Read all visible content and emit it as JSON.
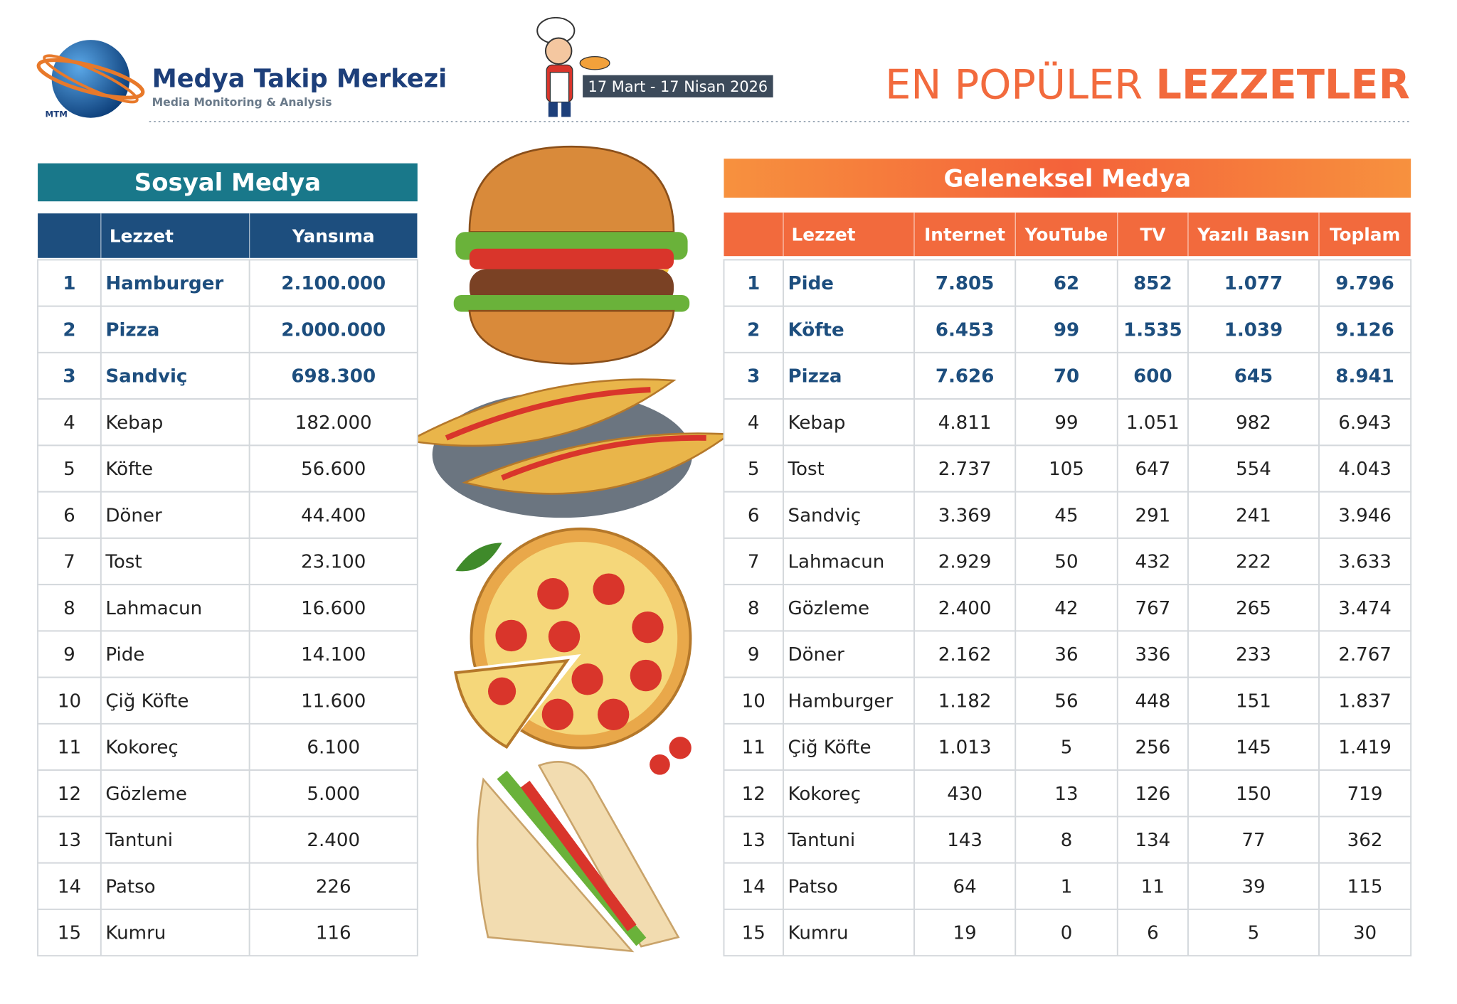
{
  "header": {
    "logo_mark": "MTM",
    "logo_title": "Medya Takip Merkezi",
    "logo_subtitle": "Media Monitoring & Analysis",
    "date_range": "17 Mart - 17 Nisan 2026",
    "title_light": "EN POPÜLER",
    "title_bold": "LEZZETLER"
  },
  "social": {
    "title": "Sosyal Medya",
    "columns": [
      "Lezzet",
      "Yansıma"
    ],
    "rows": [
      [
        "1",
        "Hamburger",
        "2.100.000"
      ],
      [
        "2",
        "Pizza",
        "2.000.000"
      ],
      [
        "3",
        "Sandviç",
        "698.300"
      ],
      [
        "4",
        "Kebap",
        "182.000"
      ],
      [
        "5",
        "Köfte",
        "56.600"
      ],
      [
        "6",
        "Döner",
        "44.400"
      ],
      [
        "7",
        "Tost",
        "23.100"
      ],
      [
        "8",
        "Lahmacun",
        "16.600"
      ],
      [
        "9",
        "Pide",
        "14.100"
      ],
      [
        "10",
        "Çiğ Köfte",
        "11.600"
      ],
      [
        "11",
        "Kokoreç",
        "6.100"
      ],
      [
        "12",
        "Gözleme",
        "5.000"
      ],
      [
        "13",
        "Tantuni",
        "2.400"
      ],
      [
        "14",
        "Patso",
        "226"
      ],
      [
        "15",
        "Kumru",
        "116"
      ]
    ]
  },
  "traditional": {
    "title": "Geleneksel Medya",
    "columns": [
      "Lezzet",
      "Internet",
      "YouTube",
      "TV",
      "Yazılı Basın",
      "Toplam"
    ],
    "rows": [
      [
        "1",
        "Pide",
        "7.805",
        "62",
        "852",
        "1.077",
        "9.796"
      ],
      [
        "2",
        "Köfte",
        "6.453",
        "99",
        "1.535",
        "1.039",
        "9.126"
      ],
      [
        "3",
        "Pizza",
        "7.626",
        "70",
        "600",
        "645",
        "8.941"
      ],
      [
        "4",
        "Kebap",
        "4.811",
        "99",
        "1.051",
        "982",
        "6.943"
      ],
      [
        "5",
        "Tost",
        "2.737",
        "105",
        "647",
        "554",
        "4.043"
      ],
      [
        "6",
        "Sandviç",
        "3.369",
        "45",
        "291",
        "241",
        "3.946"
      ],
      [
        "7",
        "Lahmacun",
        "2.929",
        "50",
        "432",
        "222",
        "3.633"
      ],
      [
        "8",
        "Gözleme",
        "2.400",
        "42",
        "767",
        "265",
        "3.474"
      ],
      [
        "9",
        "Döner",
        "2.162",
        "36",
        "336",
        "233",
        "2.767"
      ],
      [
        "10",
        "Hamburger",
        "1.182",
        "56",
        "448",
        "151",
        "1.837"
      ],
      [
        "11",
        "Çiğ Köfte",
        "1.013",
        "5",
        "256",
        "145",
        "1.419"
      ],
      [
        "12",
        "Kokoreç",
        "430",
        "13",
        "126",
        "150",
        "719"
      ],
      [
        "13",
        "Tantuni",
        "143",
        "8",
        "134",
        "77",
        "362"
      ],
      [
        "14",
        "Patso",
        "64",
        "1",
        "11",
        "39",
        "115"
      ],
      [
        "15",
        "Kumru",
        "19",
        "0",
        "6",
        "5",
        "30"
      ]
    ]
  }
}
